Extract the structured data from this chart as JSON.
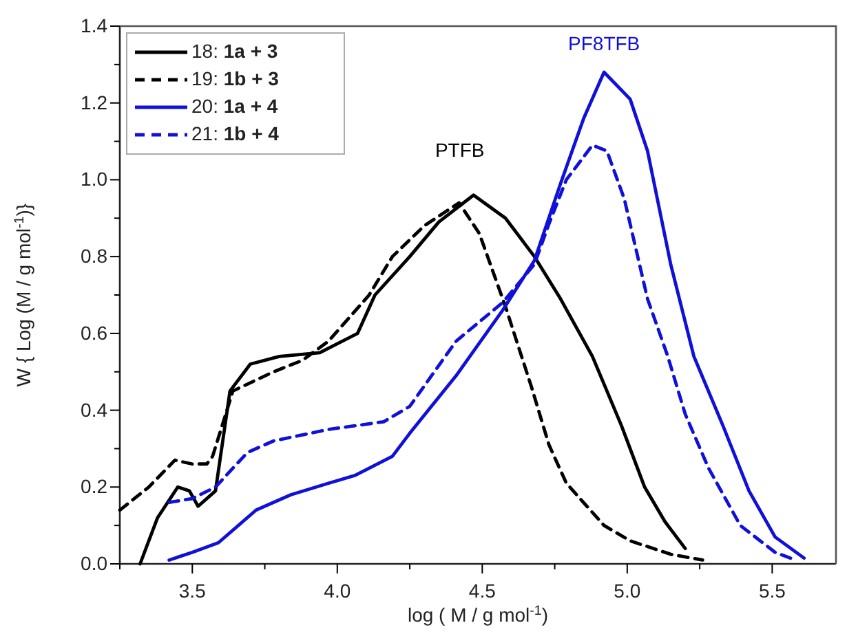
{
  "chart_data": {
    "type": "line",
    "xlabel": "log ( M / g mol$^{-1}$)",
    "ylabel": "W { Log (M / g mol$^{-1}$)}",
    "xlim": [
      3.25,
      5.72
    ],
    "ylim": [
      0,
      1.4
    ],
    "xticks": [
      {
        "value": 3.25,
        "label": null
      },
      {
        "value": 3.5,
        "label": "3.5"
      },
      {
        "value": 3.75,
        "label": null
      },
      {
        "value": 4.0,
        "label": "4.0"
      },
      {
        "value": 4.25,
        "label": null
      },
      {
        "value": 4.5,
        "label": "4.5"
      },
      {
        "value": 4.75,
        "label": null
      },
      {
        "value": 5.0,
        "label": "5.0"
      },
      {
        "value": 5.25,
        "label": null
      },
      {
        "value": 5.5,
        "label": "5.5"
      }
    ],
    "yticks": [
      {
        "value": 0,
        "label": "0.0"
      },
      {
        "value": 0.1,
        "label": null
      },
      {
        "value": 0.2,
        "label": "0.2"
      },
      {
        "value": 0.3,
        "label": null
      },
      {
        "value": 0.4,
        "label": "0.4"
      },
      {
        "value": 0.5,
        "label": null
      },
      {
        "value": 0.6,
        "label": "0.6"
      },
      {
        "value": 0.7,
        "label": null
      },
      {
        "value": 0.8,
        "label": "0.8"
      },
      {
        "value": 0.9,
        "label": null
      },
      {
        "value": 1.0,
        "label": "1.0"
      },
      {
        "value": 1.1,
        "label": null
      },
      {
        "value": 1.2,
        "label": "1.2"
      },
      {
        "value": 1.3,
        "label": null
      },
      {
        "value": 1.4,
        "label": "1.4"
      }
    ],
    "grid": false,
    "legend": "top left",
    "marker": "none",
    "annotations": [
      "PTFB",
      "PF8TFB"
    ],
    "series": [
      {
        "name": "18: 1a + 3",
        "color": "#000000",
        "line_style": "solid",
        "x": [
          3.32,
          3.38,
          3.45,
          3.49,
          3.52,
          3.58,
          3.63,
          3.7,
          3.8,
          3.94,
          4.07,
          4.13,
          4.25,
          4.35,
          4.47,
          4.58,
          4.68,
          4.77,
          4.88,
          4.98,
          5.06,
          5.13,
          5.2
        ],
        "values": [
          0,
          0.12,
          0.2,
          0.19,
          0.15,
          0.19,
          0.45,
          0.52,
          0.54,
          0.55,
          0.6,
          0.7,
          0.8,
          0.89,
          0.96,
          0.9,
          0.8,
          0.69,
          0.54,
          0.36,
          0.2,
          0.11,
          0.04
        ]
      },
      {
        "name": "19: 1b + 3",
        "color": "#000000",
        "line_style": "dashed",
        "x": [
          3.25,
          3.35,
          3.44,
          3.5,
          3.55,
          3.57,
          3.64,
          3.78,
          3.88,
          3.97,
          4.11,
          4.19,
          4.3,
          4.42,
          4.49,
          4.58,
          4.67,
          4.73,
          4.79,
          4.92,
          5.01,
          5.15,
          5.26
        ],
        "values": [
          0.14,
          0.2,
          0.27,
          0.26,
          0.26,
          0.28,
          0.45,
          0.5,
          0.53,
          0.58,
          0.7,
          0.8,
          0.88,
          0.94,
          0.86,
          0.67,
          0.46,
          0.31,
          0.21,
          0.1,
          0.06,
          0.025,
          0.01
        ]
      },
      {
        "name": "20: 1a + 4",
        "color": "#1010d8",
        "line_style": "solid",
        "x": [
          3.42,
          3.5,
          3.59,
          3.72,
          3.84,
          3.97,
          4.06,
          4.19,
          4.25,
          4.41,
          4.57,
          4.68,
          4.77,
          4.85,
          4.92,
          5.01,
          5.07,
          5.15,
          5.23,
          5.33,
          5.42,
          5.51,
          5.61
        ],
        "values": [
          0.01,
          0.03,
          0.055,
          0.14,
          0.18,
          0.21,
          0.23,
          0.28,
          0.34,
          0.49,
          0.66,
          0.79,
          0.99,
          1.16,
          1.28,
          1.21,
          1.075,
          0.78,
          0.54,
          0.36,
          0.19,
          0.07,
          0.015
        ]
      },
      {
        "name": "21: 1b + 4",
        "color": "#1010d8",
        "line_style": "dashed",
        "x": [
          3.42,
          3.5,
          3.58,
          3.69,
          3.78,
          3.97,
          4.16,
          4.25,
          4.41,
          4.57,
          4.68,
          4.73,
          4.79,
          4.88,
          4.93,
          4.99,
          5.07,
          5.14,
          5.2,
          5.28,
          5.39,
          5.51,
          5.58
        ],
        "values": [
          0.16,
          0.17,
          0.2,
          0.29,
          0.32,
          0.35,
          0.37,
          0.41,
          0.58,
          0.68,
          0.78,
          0.885,
          1.0,
          1.09,
          1.075,
          0.95,
          0.69,
          0.54,
          0.39,
          0.25,
          0.1,
          0.03,
          0.01
        ]
      }
    ]
  }
}
